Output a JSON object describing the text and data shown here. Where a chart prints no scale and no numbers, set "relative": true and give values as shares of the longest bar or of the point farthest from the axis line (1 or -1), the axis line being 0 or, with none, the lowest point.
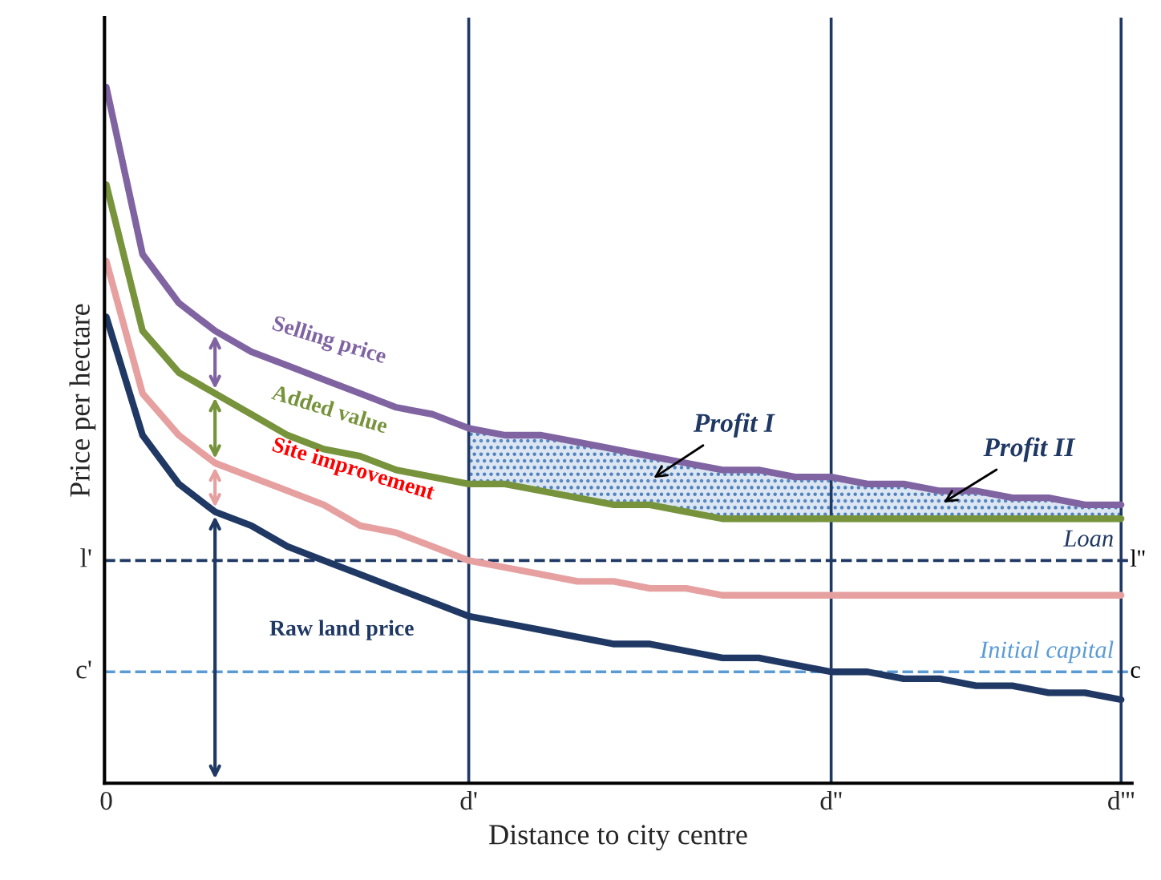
{
  "chart_data": {
    "type": "line",
    "relative": true,
    "xlabel": "Distance to city centre",
    "ylabel": "Price per hectare",
    "categories": [
      "0",
      null,
      null,
      null,
      null,
      null,
      null,
      null,
      null,
      null,
      "d'",
      null,
      null,
      null,
      null,
      null,
      null,
      null,
      null,
      null,
      "d''",
      null,
      null,
      null,
      null,
      null,
      null,
      null,
      "d'''"
    ],
    "legend": "left",
    "marker": "none",
    "line_style": "solid",
    "series": [
      {
        "name": "Selling price",
        "color": "#8064a2",
        "values": [
          1.0,
          0.76,
          0.69,
          0.65,
          0.62,
          0.6,
          0.58,
          0.56,
          0.54,
          0.53,
          0.51,
          0.5,
          0.5,
          0.49,
          0.48,
          0.47,
          0.46,
          0.45,
          0.45,
          0.44,
          0.44,
          0.43,
          0.43,
          0.42,
          0.42,
          0.41,
          0.41,
          0.4,
          0.4
        ],
        "lower": [
          null,
          null,
          null,
          null,
          null,
          null,
          null,
          null,
          null,
          null,
          0.43,
          0.43,
          0.42,
          0.41,
          0.4,
          0.4,
          0.39,
          0.38,
          0.38,
          0.38,
          0.38,
          0.38,
          0.38,
          0.38,
          0.38,
          0.38,
          0.38,
          0.38,
          0.38
        ],
        "upper": [
          null,
          null,
          null,
          null,
          null,
          null,
          null,
          null,
          null,
          null,
          0.51,
          0.5,
          0.5,
          0.49,
          0.48,
          0.47,
          0.46,
          0.45,
          0.45,
          0.44,
          0.44,
          0.43,
          0.43,
          0.42,
          0.42,
          0.41,
          0.41,
          0.4,
          0.4
        ]
      },
      {
        "name": "Added value",
        "color": "#77933c",
        "values": [
          0.86,
          0.65,
          0.59,
          0.56,
          0.53,
          0.5,
          0.48,
          0.47,
          0.45,
          0.44,
          0.43,
          0.43,
          0.42,
          0.41,
          0.4,
          0.4,
          0.39,
          0.38,
          0.38,
          0.38,
          0.38,
          0.38,
          0.38,
          0.38,
          0.38,
          0.38,
          0.38,
          0.38,
          0.38
        ]
      },
      {
        "name": "Site improvement",
        "color": "#e6a0a0",
        "values": [
          0.75,
          0.56,
          0.5,
          0.46,
          0.44,
          0.42,
          0.4,
          0.37,
          0.36,
          0.34,
          0.32,
          0.31,
          0.3,
          0.29,
          0.29,
          0.28,
          0.28,
          0.27,
          0.27,
          0.27,
          0.27,
          0.27,
          0.27,
          0.27,
          0.27,
          0.27,
          0.27,
          0.27,
          0.27
        ]
      },
      {
        "name": "Raw land price",
        "color": "#1f3864",
        "values": [
          0.67,
          0.5,
          0.43,
          0.39,
          0.37,
          0.34,
          0.32,
          0.3,
          0.28,
          0.26,
          0.24,
          0.23,
          0.22,
          0.21,
          0.2,
          0.2,
          0.19,
          0.18,
          0.18,
          0.17,
          0.16,
          0.16,
          0.15,
          0.15,
          0.14,
          0.14,
          0.13,
          0.13,
          0.12
        ]
      }
    ],
    "ref_lines": [
      {
        "axis": "y",
        "value": 0.32,
        "label": "l'",
        "color": "#1f3864",
        "line_style": "dashed"
      },
      {
        "axis": "y",
        "value": 0.16,
        "label": "c'",
        "color": "#5b9bd5",
        "line_style": "dashed"
      },
      {
        "axis": "x",
        "value": "d'",
        "label": null,
        "color": "#1f3864",
        "line_style": "solid"
      },
      {
        "axis": "x",
        "value": "d''",
        "label": null,
        "color": "#1f3864",
        "line_style": "solid"
      },
      {
        "axis": "x",
        "value": "d'''",
        "label": null,
        "color": "#1f3864",
        "line_style": "solid"
      }
    ],
    "annotations": [
      "Profit I",
      "Profit II",
      {
        "text": "Loan",
        "y": 0.32
      },
      {
        "text": "l''",
        "y": 0.32
      },
      {
        "text": "Initial capital",
        "y": 0.16
      },
      {
        "text": "c",
        "y": 0.16
      }
    ]
  }
}
